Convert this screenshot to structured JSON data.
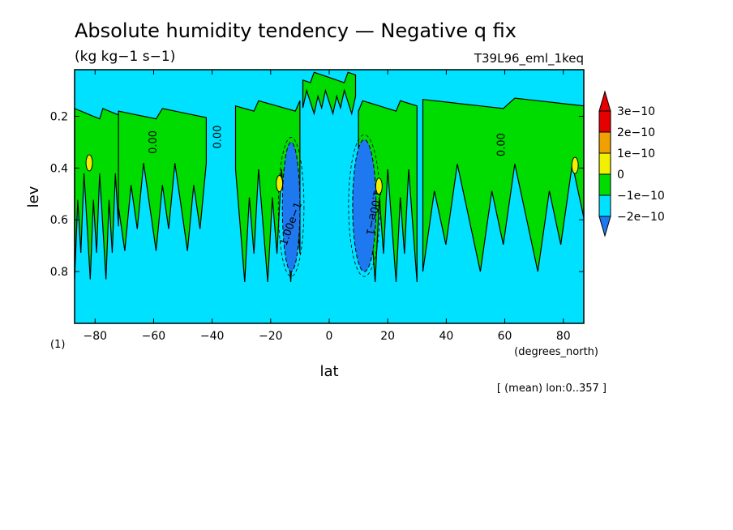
{
  "chart_data": {
    "type": "contour",
    "title": "Absolute humidity tendency — Negative q fix",
    "units": "(kg kg−1 s−1)",
    "run_label": "T39L96_eml_1keq",
    "xlabel": "lat",
    "x_unit": "(degrees_north)",
    "ylabel": "lev",
    "y_unit": "(1)",
    "footnote": "[ (mean) lon:0..357 ]",
    "xlim": [
      -87,
      87
    ],
    "ylim": [
      1.0,
      0.02
    ],
    "y_inverted": true,
    "x_ticks": [
      -80,
      -60,
      -40,
      -20,
      0,
      20,
      40,
      60,
      80
    ],
    "x_tick_labels": [
      "−80",
      "−60",
      "−40",
      "−20",
      "0",
      "20",
      "40",
      "60",
      "80"
    ],
    "y_ticks": [
      0.2,
      0.4,
      0.6,
      0.8
    ],
    "y_tick_labels": [
      "0.2",
      "0.4",
      "0.6",
      "0.8"
    ],
    "contour_labels": [
      "0.00",
      "1.00e−1"
    ],
    "colorbar": {
      "levels": [
        -2e-10,
        -1e-10,
        0,
        1e-10,
        2e-10,
        3e-10
      ],
      "level_labels": [
        "−2e−10",
        "−1e−10",
        "0",
        "1e−10",
        "2e−10",
        "3e−10"
      ],
      "colors": [
        "#1e78f0",
        "#00e1ff",
        "#00dc00",
        "#f0f000",
        "#f0a000",
        "#e60000"
      ]
    },
    "positive_regions": [
      {
        "lat": [
          -87,
          -72
        ],
        "lev": [
          0.19,
          0.83
        ],
        "max_level": 1e-10
      },
      {
        "lat": [
          -72,
          -42
        ],
        "lev": [
          0.19,
          0.72
        ],
        "max_level": 1e-10
      },
      {
        "lat": [
          -32,
          -10
        ],
        "lev": [
          0.16,
          0.84
        ],
        "max_level": 1e-10
      },
      {
        "lat": [
          -9,
          9
        ],
        "lev": [
          0.05,
          0.19
        ],
        "max_level": 1e-10
      },
      {
        "lat": [
          10,
          30
        ],
        "lev": [
          0.16,
          0.84
        ],
        "max_level": 1e-10
      },
      {
        "lat": [
          32,
          87
        ],
        "lev": [
          0.15,
          0.8
        ],
        "max_level": 1e-10
      }
    ],
    "negative_regions": [
      {
        "lat": [
          -16,
          -10
        ],
        "lev": [
          0.3,
          0.8
        ],
        "min_level": -1e-10
      },
      {
        "lat": [
          8,
          16
        ],
        "lev": [
          0.29,
          0.8
        ],
        "min_level": -1e-10
      }
    ],
    "local_maxima": [
      {
        "lat": -82,
        "lev": 0.38,
        "level": 2e-10
      },
      {
        "lat": -17,
        "lev": 0.46,
        "level": 2e-10
      },
      {
        "lat": 17,
        "lev": 0.47,
        "level": 2e-10
      },
      {
        "lat": 84,
        "lev": 0.39,
        "level": 2e-10
      }
    ]
  }
}
